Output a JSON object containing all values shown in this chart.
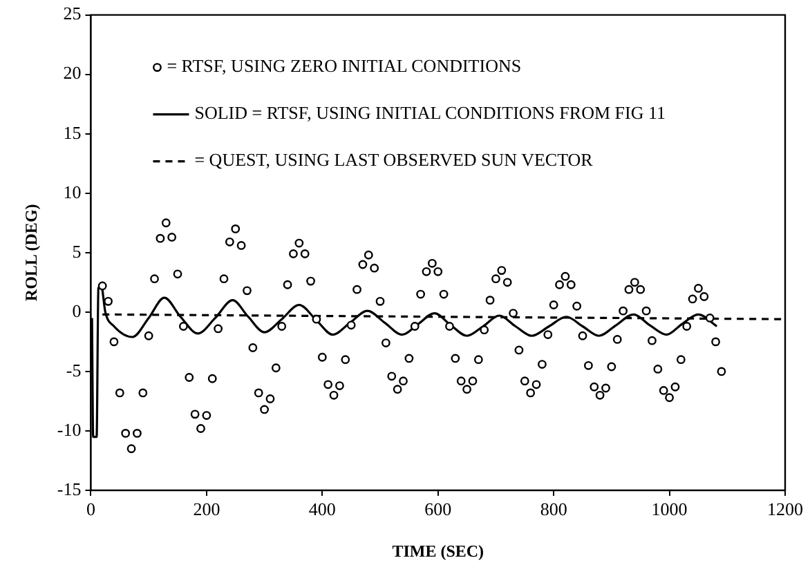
{
  "chart_data": {
    "type": "line",
    "xlabel": "TIME (SEC)",
    "ylabel": "ROLL (DEG)",
    "xlim": [
      0,
      1200
    ],
    "xticks": [
      0,
      200,
      400,
      600,
      800,
      1000,
      1200
    ],
    "ylim": [
      -15,
      25
    ],
    "yticks": [
      -15,
      -10,
      -5,
      0,
      5,
      10,
      15,
      20,
      25
    ],
    "grid": false,
    "legend": "top left",
    "series": [
      {
        "name": "= RTSF, USING ZERO INITIAL CONDITIONS",
        "type": "scatter",
        "marker": "circle",
        "color": "#000000",
        "x": [
          20,
          30,
          40,
          50,
          60,
          70,
          80,
          90,
          100,
          110,
          120,
          130,
          140,
          150,
          160,
          170,
          180,
          190,
          200,
          210,
          220,
          230,
          240,
          250,
          260,
          270,
          280,
          290,
          300,
          310,
          320,
          330,
          340,
          350,
          360,
          370,
          380,
          390,
          400,
          410,
          420,
          430,
          440,
          450,
          460,
          470,
          480,
          490,
          500,
          510,
          520,
          530,
          540,
          550,
          560,
          570,
          580,
          590,
          600,
          610,
          620,
          630,
          640,
          650,
          660,
          670,
          680,
          690,
          700,
          710,
          720,
          730,
          740,
          750,
          760,
          770,
          780,
          790,
          800,
          810,
          820,
          830,
          840,
          850,
          860,
          870,
          880,
          890,
          900,
          910,
          920,
          930,
          940,
          950,
          960,
          970,
          980,
          990,
          1000,
          1010,
          1020,
          1030,
          1040,
          1050,
          1060,
          1070,
          1080,
          1090
        ],
        "values": [
          2.2,
          0.9,
          -2.5,
          -6.8,
          -10.2,
          -11.5,
          -10.2,
          -6.8,
          -2.0,
          2.8,
          6.2,
          7.5,
          6.3,
          3.2,
          -1.2,
          -5.5,
          -8.6,
          -9.8,
          -8.7,
          -5.6,
          -1.4,
          2.8,
          5.9,
          7.0,
          5.6,
          1.8,
          -3.0,
          -6.8,
          -8.2,
          -7.3,
          -4.7,
          -1.2,
          2.3,
          4.9,
          5.8,
          4.9,
          2.6,
          -0.6,
          -3.8,
          -6.1,
          -7.0,
          -6.2,
          -4.0,
          -1.1,
          1.9,
          4.0,
          4.8,
          3.7,
          0.9,
          -2.6,
          -5.4,
          -6.5,
          -5.8,
          -3.9,
          -1.2,
          1.5,
          3.4,
          4.1,
          3.4,
          1.5,
          -1.2,
          -3.9,
          -5.8,
          -6.5,
          -5.8,
          -4.0,
          -1.5,
          1.0,
          2.8,
          3.5,
          2.5,
          -0.1,
          -3.2,
          -5.8,
          -6.8,
          -6.1,
          -4.4,
          -1.9,
          0.6,
          2.3,
          3.0,
          2.3,
          0.5,
          -2.0,
          -4.5,
          -6.3,
          -7.0,
          -6.4,
          -4.6,
          -2.3,
          0.1,
          1.9,
          2.5,
          1.9,
          0.1,
          -2.4,
          -4.8,
          -6.6,
          -7.2,
          -6.3,
          -4.0,
          -1.2,
          1.1,
          2.0,
          1.3,
          -0.5,
          -2.5,
          -5.0
        ]
      },
      {
        "name": "SOLID = RTSF, USING INITIAL CONDITIONS FROM FIG 11",
        "type": "line",
        "marker": "none",
        "line_style": "solid",
        "color": "#000000",
        "x": [
          2,
          4,
          10,
          13,
          18,
          25,
          40,
          72,
          100,
          127,
          155,
          185,
          215,
          245,
          272,
          300,
          330,
          360,
          390,
          418,
          448,
          478,
          508,
          538,
          566,
          594,
          622,
          650,
          678,
          706,
          734,
          762,
          792,
          822,
          850,
          878,
          908,
          938,
          966,
          995,
          1022,
          1050,
          1082
        ],
        "values": [
          -0.5,
          -10.5,
          -10.5,
          2,
          2.2,
          0,
          -1.2,
          -2.1,
          -0.5,
          1.2,
          -0.4,
          -1.8,
          -0.5,
          1.0,
          -0.4,
          -1.7,
          -0.6,
          0.6,
          -0.7,
          -1.9,
          -0.9,
          0.1,
          -0.9,
          -1.9,
          -1.0,
          -0.1,
          -1.1,
          -2.0,
          -1.2,
          -0.3,
          -1.2,
          -2.0,
          -1.2,
          -0.4,
          -1.2,
          -2.0,
          -1.1,
          -0.2,
          -1.1,
          -1.9,
          -1.0,
          -0.2,
          -1.2
        ]
      },
      {
        "name": "= QUEST, USING LAST OBSERVED SUN VECTOR",
        "type": "line",
        "marker": "none",
        "line_style": "dashed",
        "color": "#000000",
        "x": [
          20,
          1200
        ],
        "values": [
          -0.2,
          -0.6
        ]
      }
    ]
  }
}
